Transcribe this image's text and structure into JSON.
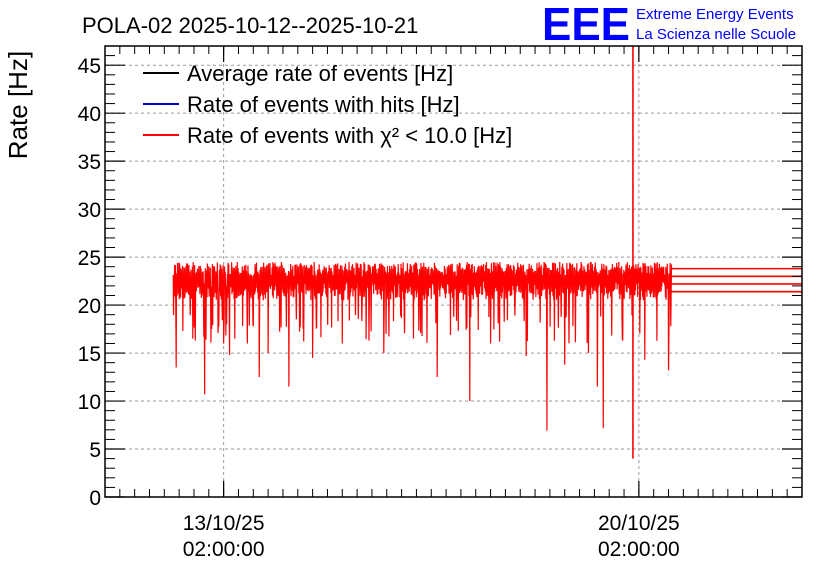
{
  "chart_data": {
    "type": "line",
    "title": "POLA-02 2025-10-12--2025-10-21",
    "ylabel": "Rate [Hz]",
    "xlabel": "",
    "ylim": [
      0,
      47
    ],
    "y_ticks": [
      0,
      5,
      10,
      15,
      20,
      25,
      30,
      35,
      40,
      45
    ],
    "x_ticks": [
      {
        "date": "13/10/25",
        "time": "02:00:00",
        "day": 1.0
      },
      {
        "date": "20/10/25",
        "time": "02:00:00",
        "day": 8.0
      }
    ],
    "xlim_days": [
      -1.0,
      10.75
    ],
    "grid": true,
    "legend": [
      {
        "label": "Average rate of events [Hz]",
        "color": "#000000"
      },
      {
        "label": "Rate of events with hits [Hz]",
        "color": "#0000cc"
      },
      {
        "label": "Rate of events with χ² < 10.0 [Hz]",
        "color": "#ff0000"
      }
    ],
    "series": [
      {
        "name": "Rate of events with χ² < 10.0 [Hz]",
        "color": "#ff0000",
        "x_range_days": [
          0.15,
          8.55
        ],
        "band": [
          20.5,
          24.5
        ],
        "typical": 22.5,
        "dips": [
          {
            "day": 0.2,
            "value": 13.5
          },
          {
            "day": 0.48,
            "value": 16.5
          },
          {
            "day": 0.68,
            "value": 10.7
          },
          {
            "day": 1.0,
            "value": 16.0
          },
          {
            "day": 1.1,
            "value": 14.8
          },
          {
            "day": 1.4,
            "value": 16.0
          },
          {
            "day": 1.6,
            "value": 12.5
          },
          {
            "day": 1.75,
            "value": 15.0
          },
          {
            "day": 2.1,
            "value": 11.5
          },
          {
            "day": 2.35,
            "value": 16.2
          },
          {
            "day": 2.5,
            "value": 14.5
          },
          {
            "day": 3.0,
            "value": 16.0
          },
          {
            "day": 3.45,
            "value": 16.3
          },
          {
            "day": 3.7,
            "value": 15.0
          },
          {
            "day": 4.2,
            "value": 16.5
          },
          {
            "day": 4.6,
            "value": 12.5
          },
          {
            "day": 5.15,
            "value": 10.0
          },
          {
            "day": 5.5,
            "value": 16.0
          },
          {
            "day": 6.1,
            "value": 14.7
          },
          {
            "day": 6.45,
            "value": 6.9
          },
          {
            "day": 6.75,
            "value": 13.8
          },
          {
            "day": 7.15,
            "value": 15.0
          },
          {
            "day": 7.3,
            "value": 11.5
          },
          {
            "day": 7.4,
            "value": 7.2
          },
          {
            "day": 8.1,
            "value": 14.3
          },
          {
            "day": 8.5,
            "value": 13.2
          }
        ],
        "spike": {
          "day": 7.9,
          "high": 47,
          "low": 4.0
        },
        "tail_lines": [
          23.8,
          23.0,
          22.2,
          21.4
        ]
      }
    ]
  },
  "logo": {
    "mark": "EEE",
    "line1": "Extreme Energy Events",
    "line2": "La Scienza nelle Scuole",
    "color": "#0000ff"
  }
}
